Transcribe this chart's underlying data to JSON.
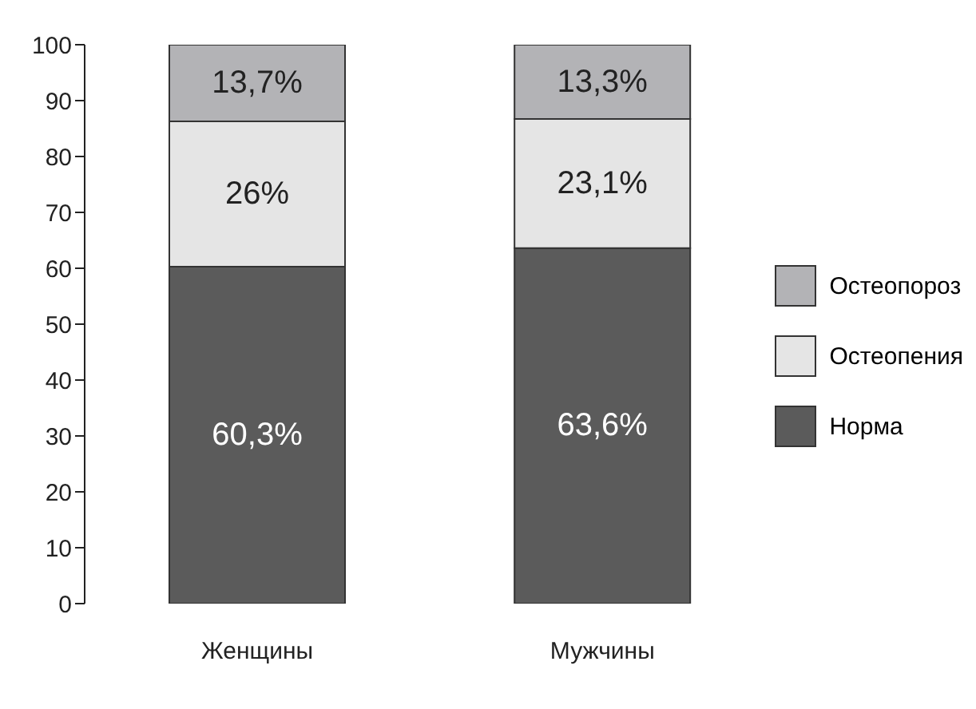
{
  "chart_data": {
    "type": "bar",
    "stacked": true,
    "categories": [
      "Женщины",
      "Мужчины"
    ],
    "series": [
      {
        "name": "Норма",
        "color": "#5b5b5b",
        "values": [
          60.3,
          63.6
        ],
        "value_labels": [
          "60,3%",
          "63,6%"
        ]
      },
      {
        "name": "Остеопения",
        "color": "#e5e5e5",
        "values": [
          26,
          23.1
        ],
        "value_labels": [
          "26%",
          "23,1%"
        ]
      },
      {
        "name": "Остеопороз",
        "color": "#b3b3b6",
        "values": [
          13.7,
          13.3
        ],
        "value_labels": [
          "13,7%",
          "13,3%"
        ]
      }
    ],
    "ylim": [
      0,
      100
    ],
    "yticks": [
      0,
      10,
      20,
      30,
      40,
      50,
      60,
      70,
      80,
      90,
      100
    ],
    "grid": false,
    "legend": "right"
  }
}
